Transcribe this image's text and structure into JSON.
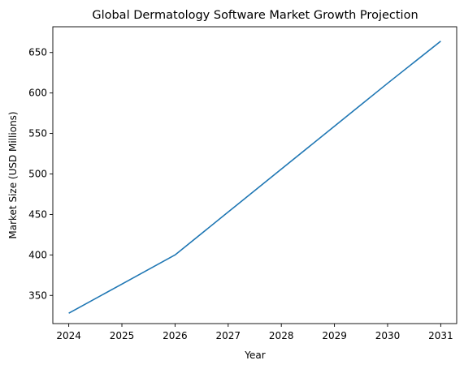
{
  "chart_data": {
    "type": "line",
    "title": "Global Dermatology Software Market Growth Projection",
    "xlabel": "Year",
    "ylabel": "Market Size (USD Millions)",
    "xlim": [
      2023.7,
      2031.3
    ],
    "ylim": [
      315.2,
      681.8
    ],
    "xticks": [
      2024,
      2025,
      2026,
      2027,
      2028,
      2029,
      2030,
      2031
    ],
    "yticks": [
      350,
      400,
      450,
      500,
      550,
      600,
      650
    ],
    "grid": false,
    "series": [
      {
        "color": "#1f77b4",
        "x": [
          2024,
          2025,
          2026,
          2027,
          2028,
          2029,
          2030,
          2031
        ],
        "y": [
          328,
          364,
          400,
          453,
          506,
          559,
          612,
          664
        ]
      }
    ]
  }
}
